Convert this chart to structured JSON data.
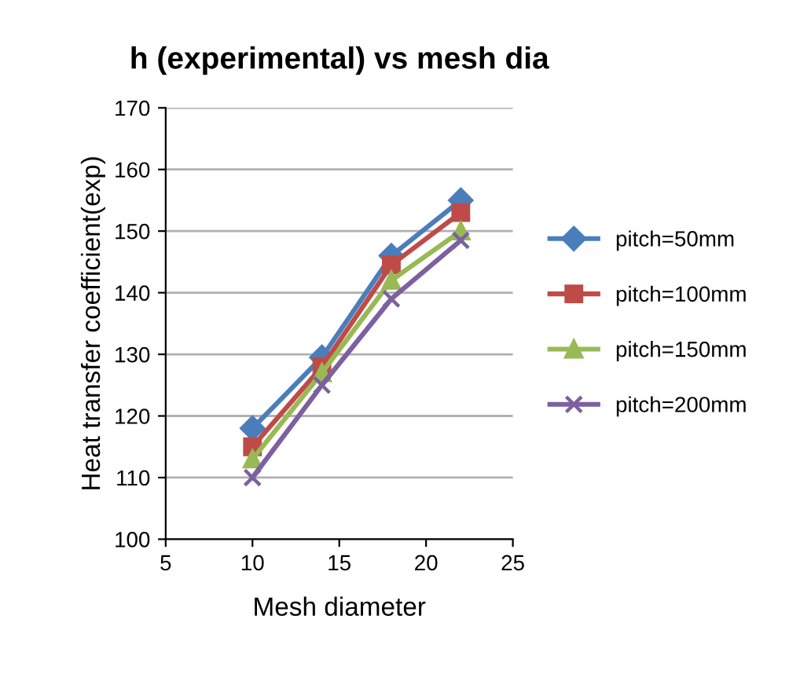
{
  "chart_data": {
    "type": "line",
    "title": "h (experimental) vs mesh dia",
    "xlabel": "Mesh diameter",
    "ylabel": "Heat transfer coefficient(exp)",
    "x": [
      10,
      14,
      18,
      22
    ],
    "xlim": [
      5,
      25
    ],
    "xticks": [
      5,
      10,
      15,
      20,
      25
    ],
    "ylim": [
      100,
      170
    ],
    "yticks": [
      100,
      110,
      120,
      130,
      140,
      150,
      160,
      170
    ],
    "grid": "y",
    "legend": "right",
    "series": [
      {
        "name": "pitch=50mm",
        "color": "#4a7ebb",
        "marker": "diamond",
        "values": [
          118,
          129.5,
          146,
          155
        ]
      },
      {
        "name": "pitch=100mm",
        "color": "#be4b48",
        "marker": "square",
        "values": [
          115,
          128,
          144.5,
          153
        ]
      },
      {
        "name": "pitch=150mm",
        "color": "#98b954",
        "marker": "triangle",
        "values": [
          113,
          127,
          142,
          150
        ]
      },
      {
        "name": "pitch=200mm",
        "color": "#7d60a0",
        "marker": "cross",
        "values": [
          110,
          125,
          139,
          148.5
        ]
      }
    ]
  }
}
